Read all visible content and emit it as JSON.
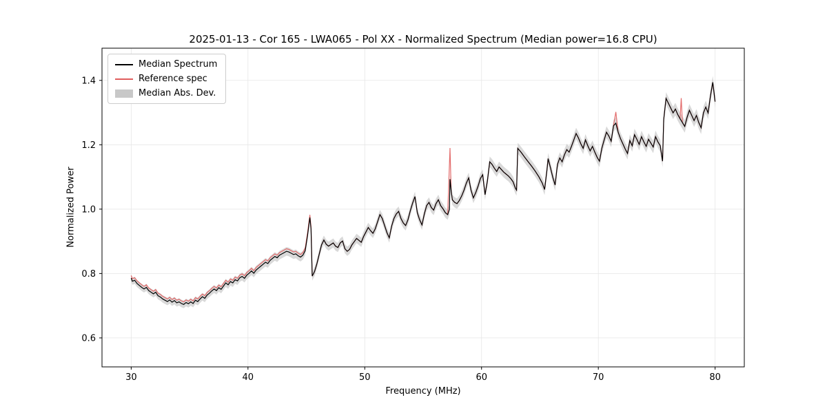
{
  "title": "2025-01-13 - Cor 165 - LWA065 - Pol XX - Normalized Spectrum (Median power=16.8 CPU)",
  "axes": {
    "xlabel": "Frequency (MHz)",
    "ylabel": "Normalized Power"
  },
  "legend": {
    "items": [
      {
        "label": "Median Spectrum",
        "type": "line",
        "color": "#000000"
      },
      {
        "label": "Reference spec",
        "type": "line",
        "color": "#e05c5c"
      },
      {
        "label": "Median Abs. Dev.",
        "type": "patch",
        "color": "#c8c8c8"
      }
    ]
  },
  "chart_data": {
    "type": "line",
    "title": "2025-01-13 - Cor 165 - LWA065 - Pol XX - Normalized Spectrum (Median power=16.8 CPU)",
    "xlabel": "Frequency (MHz)",
    "ylabel": "Normalized Power",
    "xlim": [
      27.5,
      82.5
    ],
    "ylim": [
      0.51,
      1.5
    ],
    "xticks": [
      30,
      40,
      50,
      60,
      70,
      80
    ],
    "yticks": [
      0.6,
      0.8,
      1.0,
      1.2,
      1.4
    ],
    "grid": true,
    "legend_position": "upper left",
    "colors": {
      "median": "#000000",
      "reference": "#e05c5c",
      "mad_band": "#c4c4c4",
      "grid": "#e6e6e6"
    },
    "series": [
      {
        "name": "Median Spectrum",
        "color": "#000000",
        "points": [
          [
            30.0,
            0.786
          ],
          [
            30.1,
            0.776
          ],
          [
            30.3,
            0.779
          ],
          [
            30.5,
            0.769
          ],
          [
            30.7,
            0.763
          ],
          [
            30.9,
            0.757
          ],
          [
            31.1,
            0.752
          ],
          [
            31.3,
            0.757
          ],
          [
            31.5,
            0.747
          ],
          [
            31.7,
            0.742
          ],
          [
            31.9,
            0.737
          ],
          [
            32.1,
            0.742
          ],
          [
            32.3,
            0.731
          ],
          [
            32.5,
            0.727
          ],
          [
            32.7,
            0.721
          ],
          [
            32.9,
            0.717
          ],
          [
            33.1,
            0.713
          ],
          [
            33.3,
            0.718
          ],
          [
            33.5,
            0.711
          ],
          [
            33.7,
            0.716
          ],
          [
            33.9,
            0.709
          ],
          [
            34.1,
            0.712
          ],
          [
            34.3,
            0.707
          ],
          [
            34.5,
            0.704
          ],
          [
            34.7,
            0.71
          ],
          [
            34.9,
            0.706
          ],
          [
            35.1,
            0.712
          ],
          [
            35.3,
            0.707
          ],
          [
            35.5,
            0.717
          ],
          [
            35.7,
            0.713
          ],
          [
            35.9,
            0.721
          ],
          [
            36.1,
            0.728
          ],
          [
            36.3,
            0.723
          ],
          [
            36.5,
            0.733
          ],
          [
            36.7,
            0.739
          ],
          [
            36.9,
            0.746
          ],
          [
            37.1,
            0.752
          ],
          [
            37.3,
            0.747
          ],
          [
            37.5,
            0.756
          ],
          [
            37.7,
            0.751
          ],
          [
            37.9,
            0.761
          ],
          [
            38.1,
            0.771
          ],
          [
            38.3,
            0.765
          ],
          [
            38.5,
            0.775
          ],
          [
            38.7,
            0.771
          ],
          [
            38.9,
            0.781
          ],
          [
            39.1,
            0.777
          ],
          [
            39.3,
            0.787
          ],
          [
            39.5,
            0.791
          ],
          [
            39.7,
            0.785
          ],
          [
            39.9,
            0.795
          ],
          [
            40.1,
            0.801
          ],
          [
            40.3,
            0.808
          ],
          [
            40.5,
            0.801
          ],
          [
            40.7,
            0.811
          ],
          [
            40.9,
            0.817
          ],
          [
            41.1,
            0.823
          ],
          [
            41.3,
            0.829
          ],
          [
            41.5,
            0.835
          ],
          [
            41.7,
            0.831
          ],
          [
            41.9,
            0.841
          ],
          [
            42.1,
            0.847
          ],
          [
            42.3,
            0.853
          ],
          [
            42.5,
            0.849
          ],
          [
            42.7,
            0.857
          ],
          [
            42.9,
            0.861
          ],
          [
            43.1,
            0.865
          ],
          [
            43.3,
            0.869
          ],
          [
            43.5,
            0.867
          ],
          [
            43.7,
            0.863
          ],
          [
            43.9,
            0.859
          ],
          [
            44.1,
            0.861
          ],
          [
            44.3,
            0.855
          ],
          [
            44.5,
            0.851
          ],
          [
            44.7,
            0.857
          ],
          [
            44.9,
            0.871
          ],
          [
            45.1,
            0.918
          ],
          [
            45.3,
            0.974
          ],
          [
            45.4,
            0.938
          ],
          [
            45.5,
            0.792
          ],
          [
            45.7,
            0.806
          ],
          [
            45.9,
            0.83
          ],
          [
            46.1,
            0.86
          ],
          [
            46.3,
            0.889
          ],
          [
            46.5,
            0.904
          ],
          [
            46.7,
            0.891
          ],
          [
            46.9,
            0.885
          ],
          [
            47.1,
            0.89
          ],
          [
            47.3,
            0.895
          ],
          [
            47.5,
            0.885
          ],
          [
            47.7,
            0.881
          ],
          [
            47.9,
            0.895
          ],
          [
            48.1,
            0.901
          ],
          [
            48.3,
            0.877
          ],
          [
            48.5,
            0.869
          ],
          [
            48.7,
            0.875
          ],
          [
            48.9,
            0.889
          ],
          [
            49.1,
            0.899
          ],
          [
            49.3,
            0.909
          ],
          [
            49.5,
            0.903
          ],
          [
            49.7,
            0.897
          ],
          [
            49.9,
            0.915
          ],
          [
            50.1,
            0.929
          ],
          [
            50.3,
            0.943
          ],
          [
            50.5,
            0.933
          ],
          [
            50.7,
            0.925
          ],
          [
            50.9,
            0.939
          ],
          [
            51.1,
            0.961
          ],
          [
            51.3,
            0.983
          ],
          [
            51.5,
            0.971
          ],
          [
            51.7,
            0.949
          ],
          [
            51.9,
            0.927
          ],
          [
            52.1,
            0.911
          ],
          [
            52.3,
            0.947
          ],
          [
            52.5,
            0.971
          ],
          [
            52.7,
            0.985
          ],
          [
            52.9,
            0.993
          ],
          [
            53.1,
            0.971
          ],
          [
            53.3,
            0.957
          ],
          [
            53.5,
            0.949
          ],
          [
            53.7,
            0.967
          ],
          [
            53.9,
            0.995
          ],
          [
            54.1,
            1.019
          ],
          [
            54.3,
            1.039
          ],
          [
            54.5,
            0.989
          ],
          [
            54.7,
            0.967
          ],
          [
            54.9,
            0.951
          ],
          [
            55.1,
            0.985
          ],
          [
            55.3,
            1.011
          ],
          [
            55.5,
            1.021
          ],
          [
            55.7,
            1.005
          ],
          [
            55.9,
            0.997
          ],
          [
            56.1,
            1.017
          ],
          [
            56.3,
            1.029
          ],
          [
            56.5,
            1.011
          ],
          [
            56.7,
            1.001
          ],
          [
            56.9,
            0.989
          ],
          [
            57.1,
            0.983
          ],
          [
            57.25,
            0.999
          ],
          [
            57.3,
            1.093
          ],
          [
            57.4,
            1.057
          ],
          [
            57.5,
            1.029
          ],
          [
            57.7,
            1.021
          ],
          [
            57.9,
            1.017
          ],
          [
            58.1,
            1.027
          ],
          [
            58.3,
            1.041
          ],
          [
            58.5,
            1.059
          ],
          [
            58.7,
            1.081
          ],
          [
            58.9,
            1.097
          ],
          [
            59.1,
            1.059
          ],
          [
            59.3,
            1.035
          ],
          [
            59.5,
            1.051
          ],
          [
            59.7,
            1.071
          ],
          [
            59.9,
            1.095
          ],
          [
            60.1,
            1.107
          ],
          [
            60.3,
            1.045
          ],
          [
            60.5,
            1.087
          ],
          [
            60.7,
            1.147
          ],
          [
            60.9,
            1.139
          ],
          [
            61.1,
            1.127
          ],
          [
            61.3,
            1.117
          ],
          [
            61.5,
            1.131
          ],
          [
            61.7,
            1.123
          ],
          [
            61.9,
            1.115
          ],
          [
            62.1,
            1.109
          ],
          [
            62.3,
            1.103
          ],
          [
            62.5,
            1.095
          ],
          [
            62.7,
            1.085
          ],
          [
            62.9,
            1.065
          ],
          [
            63.0,
            1.059
          ],
          [
            63.1,
            1.189
          ],
          [
            63.4,
            1.176
          ],
          [
            63.7,
            1.161
          ],
          [
            64.0,
            1.147
          ],
          [
            64.3,
            1.133
          ],
          [
            64.6,
            1.118
          ],
          [
            64.9,
            1.101
          ],
          [
            65.2,
            1.081
          ],
          [
            65.4,
            1.061
          ],
          [
            65.6,
            1.121
          ],
          [
            65.7,
            1.157
          ],
          [
            65.9,
            1.129
          ],
          [
            66.1,
            1.099
          ],
          [
            66.3,
            1.075
          ],
          [
            66.5,
            1.139
          ],
          [
            66.7,
            1.159
          ],
          [
            66.9,
            1.147
          ],
          [
            67.1,
            1.169
          ],
          [
            67.3,
            1.185
          ],
          [
            67.5,
            1.177
          ],
          [
            67.7,
            1.195
          ],
          [
            67.9,
            1.215
          ],
          [
            68.1,
            1.235
          ],
          [
            68.3,
            1.221
          ],
          [
            68.5,
            1.203
          ],
          [
            68.7,
            1.189
          ],
          [
            68.9,
            1.215
          ],
          [
            69.1,
            1.197
          ],
          [
            69.3,
            1.181
          ],
          [
            69.5,
            1.195
          ],
          [
            69.7,
            1.177
          ],
          [
            69.9,
            1.161
          ],
          [
            70.1,
            1.149
          ],
          [
            70.3,
            1.189
          ],
          [
            70.5,
            1.215
          ],
          [
            70.7,
            1.239
          ],
          [
            70.9,
            1.227
          ],
          [
            71.1,
            1.211
          ],
          [
            71.3,
            1.259
          ],
          [
            71.5,
            1.267
          ],
          [
            71.7,
            1.239
          ],
          [
            71.9,
            1.219
          ],
          [
            72.1,
            1.203
          ],
          [
            72.3,
            1.187
          ],
          [
            72.5,
            1.173
          ],
          [
            72.7,
            1.213
          ],
          [
            72.9,
            1.197
          ],
          [
            73.1,
            1.231
          ],
          [
            73.3,
            1.217
          ],
          [
            73.5,
            1.201
          ],
          [
            73.7,
            1.225
          ],
          [
            73.9,
            1.209
          ],
          [
            74.1,
            1.195
          ],
          [
            74.3,
            1.217
          ],
          [
            74.5,
            1.205
          ],
          [
            74.7,
            1.193
          ],
          [
            74.9,
            1.225
          ],
          [
            75.1,
            1.209
          ],
          [
            75.3,
            1.197
          ],
          [
            75.5,
            1.149
          ],
          [
            75.6,
            1.279
          ],
          [
            75.8,
            1.344
          ],
          [
            76.0,
            1.329
          ],
          [
            76.2,
            1.314
          ],
          [
            76.4,
            1.299
          ],
          [
            76.6,
            1.311
          ],
          [
            76.8,
            1.294
          ],
          [
            77.0,
            1.281
          ],
          [
            77.2,
            1.269
          ],
          [
            77.4,
            1.257
          ],
          [
            77.6,
            1.285
          ],
          [
            77.8,
            1.307
          ],
          [
            78.0,
            1.291
          ],
          [
            78.2,
            1.275
          ],
          [
            78.4,
            1.291
          ],
          [
            78.6,
            1.269
          ],
          [
            78.8,
            1.253
          ],
          [
            79.0,
            1.299
          ],
          [
            79.2,
            1.317
          ],
          [
            79.4,
            1.299
          ],
          [
            79.6,
            1.351
          ],
          [
            79.8,
            1.394
          ],
          [
            79.9,
            1.364
          ],
          [
            80.0,
            1.334
          ]
        ]
      },
      {
        "name": "Reference spec",
        "color": "#e05c5c",
        "derived_from": "Median Spectrum",
        "offset_below_mhz": 45.5,
        "offset": 0.008,
        "spikes": [
          [
            57.3,
            1.19
          ],
          [
            71.5,
            1.302
          ],
          [
            77.1,
            1.345
          ]
        ]
      },
      {
        "name": "Median Abs. Dev.",
        "color": "#c4c4c4",
        "band_halfwidth_start": 0.011,
        "band_halfwidth_end": 0.02
      }
    ]
  }
}
